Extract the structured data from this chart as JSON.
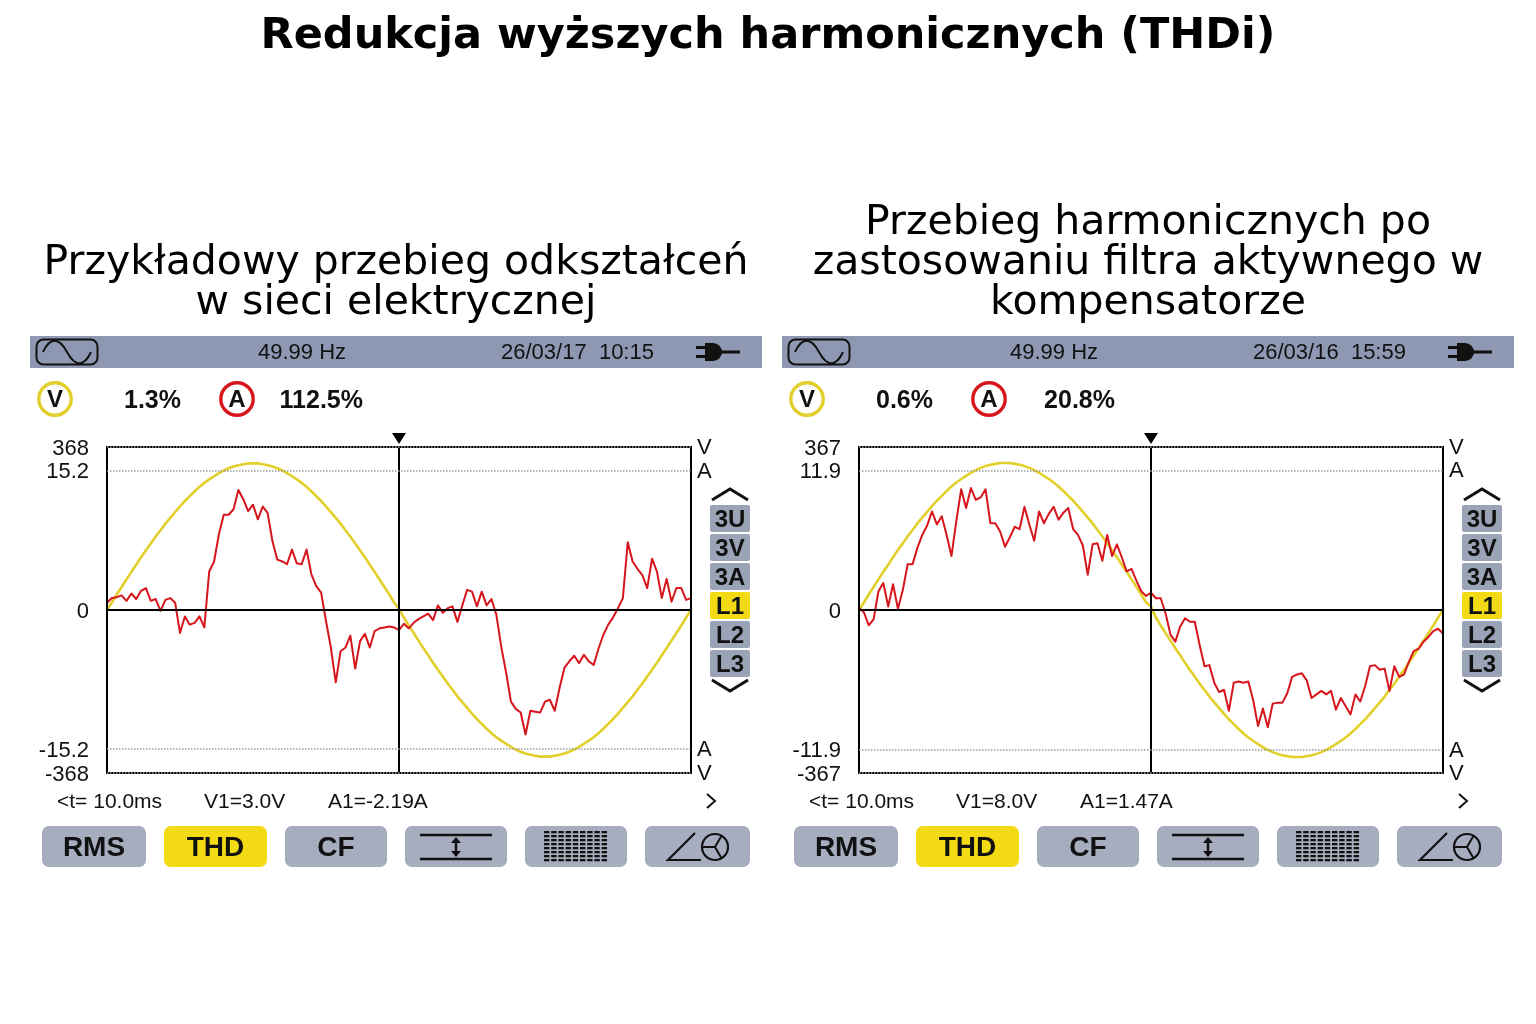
{
  "chart_data": [
    {
      "type": "line",
      "title": "Redukcja wyższych harmonicznych (THDi)",
      "subtitle": "Przykładowy przebieg odkształceń w sieci elektrycznej",
      "ylim": [
        -368,
        368
      ],
      "yticks": [
        -368,
        0,
        368
      ],
      "y2lim": [
        -17.8,
        17.8
      ],
      "y2ticks": [
        -15.2,
        15.2
      ],
      "grid": true,
      "marker": "none",
      "line_style": "solid",
      "categories": [
        null,
        null,
        null,
        null,
        null,
        null,
        null,
        null,
        null,
        null,
        null,
        null,
        null,
        null,
        null,
        null,
        null,
        null,
        null,
        null,
        null,
        null,
        null,
        null,
        null,
        null,
        null,
        null,
        null,
        null,
        null,
        null,
        null,
        null,
        null,
        null,
        null,
        null,
        null,
        null,
        null,
        null,
        null,
        null,
        null,
        null,
        null,
        null,
        null,
        null,
        null,
        null,
        null,
        null,
        null,
        null,
        null,
        null,
        null,
        null,
        null,
        null,
        null,
        null,
        null,
        null,
        null,
        null,
        null,
        null,
        null,
        null,
        null,
        null,
        null,
        null,
        null,
        null,
        null,
        null,
        null,
        null,
        null,
        null,
        null,
        null,
        null,
        null,
        null,
        null,
        null,
        null,
        null,
        null,
        null,
        null,
        null,
        null,
        null,
        null,
        null,
        null,
        null,
        null,
        null,
        null,
        null,
        null,
        null,
        null,
        null,
        null,
        null,
        null,
        null,
        null,
        null,
        null,
        null,
        null,
        null
      ],
      "annotations": [
        "49.99 Hz",
        "26/03/17  10:15",
        "V",
        "1.3%",
        "A",
        "112.5%",
        "V",
        "A",
        "A",
        "V",
        "<t= 10.0ms",
        "V1=3.0V",
        "A1=-2.19A",
        "RMS",
        "THD",
        "CF",
        "3U",
        "3V",
        "3A",
        "L1",
        "L2",
        "L3"
      ],
      "series": [
        {
          "color": "#e3cf2a",
          "values": [
            0,
            17,
            35,
            52,
            69,
            86,
            102,
            119,
            135,
            150,
            166,
            180,
            195,
            208,
            221,
            234,
            246,
            257,
            268,
            278,
            287,
            295,
            302,
            309,
            315,
            320,
            324,
            327,
            329,
            331,
            331,
            331,
            329,
            327,
            324,
            320,
            315,
            309,
            302,
            295,
            287,
            278,
            268,
            257,
            246,
            234,
            221,
            208,
            195,
            180,
            166,
            150,
            135,
            119,
            102,
            86,
            69,
            52,
            35,
            17,
            3,
            -17,
            -35,
            -52,
            -69,
            -86,
            -102,
            -119,
            -135,
            -150,
            -166,
            -180,
            -195,
            -208,
            -221,
            -234,
            -246,
            -257,
            -268,
            -278,
            -287,
            -295,
            -302,
            -309,
            -315,
            -320,
            -324,
            -327,
            -329,
            -331,
            -331,
            -331,
            -329,
            -327,
            -324,
            -320,
            -315,
            -309,
            -302,
            -295,
            -287,
            -278,
            -268,
            -257,
            -246,
            -234,
            -221,
            -208,
            -195,
            -180,
            -166,
            -150,
            -135,
            -119,
            -102,
            -86,
            -69,
            -52,
            -35,
            -17,
            0
          ]
        },
        {
          "color": "#d6161c",
          "axis": "y2",
          "values": [
            0.8,
            1.3,
            1.4,
            1.6,
            1.0,
            1.8,
            1.2,
            2.1,
            2.4,
            1.0,
            1.2,
            -0.1,
            1.1,
            1.3,
            0.8,
            -2.5,
            -0.7,
            -1.6,
            -1.4,
            -0.7,
            -1.9,
            4.2,
            5.3,
            8.3,
            10.4,
            10.4,
            11.0,
            13.1,
            12.1,
            10.8,
            11.5,
            9.9,
            11.3,
            10.6,
            7.5,
            5.5,
            5.3,
            5.0,
            6.6,
            5.1,
            5.0,
            6.6,
            3.9,
            2.6,
            1.9,
            -1.2,
            -4.1,
            -7.9,
            -4.5,
            -4.1,
            -2.8,
            -6.4,
            -3.4,
            -2.6,
            -4.1,
            -2.3,
            -2.0,
            -1.9,
            -1.8,
            -1.9,
            -2.19,
            -1.5,
            -2.0,
            -1.4,
            -1.0,
            -0.7,
            -0.4,
            -1.1,
            0.5,
            -0.3,
            0.2,
            0.4,
            -1.3,
            0.5,
            2.2,
            2.0,
            0.4,
            2.0,
            0.5,
            1.2,
            -0.5,
            -4.0,
            -6.8,
            -10.0,
            -10.8,
            -11.2,
            -13.6,
            -11.0,
            -11.1,
            -11.2,
            -10.0,
            -9.8,
            -11.0,
            -8.5,
            -6.3,
            -5.6,
            -5.0,
            -5.8,
            -4.9,
            -5.6,
            -6.0,
            -4.2,
            -2.7,
            -1.6,
            -0.8,
            0.2,
            1.3,
            7.4,
            5.3,
            4.5,
            3.8,
            2.4,
            5.6,
            4.2,
            1.3,
            3.4,
            0.9,
            2.4,
            2.4,
            1.1,
            1.3
          ]
        }
      ]
    },
    {
      "type": "line",
      "subtitle": "Przebieg harmonicznych po zastosowaniu filtra aktywnego w kompensatorze",
      "ylim": [
        -367,
        367
      ],
      "yticks": [
        -367,
        0,
        367
      ],
      "y2lim": [
        -13.9,
        13.9
      ],
      "y2ticks": [
        -11.9,
        11.9
      ],
      "grid": true,
      "marker": "none",
      "line_style": "solid",
      "categories": [
        null,
        null,
        null,
        null,
        null,
        null,
        null,
        null,
        null,
        null,
        null,
        null,
        null,
        null,
        null,
        null,
        null,
        null,
        null,
        null,
        null,
        null,
        null,
        null,
        null,
        null,
        null,
        null,
        null,
        null,
        null,
        null,
        null,
        null,
        null,
        null,
        null,
        null,
        null,
        null,
        null,
        null,
        null,
        null,
        null,
        null,
        null,
        null,
        null,
        null,
        null,
        null,
        null,
        null,
        null,
        null,
        null,
        null,
        null,
        null,
        null,
        null,
        null,
        null,
        null,
        null,
        null,
        null,
        null,
        null,
        null,
        null,
        null,
        null,
        null,
        null,
        null,
        null,
        null,
        null,
        null,
        null,
        null,
        null,
        null,
        null,
        null,
        null,
        null,
        null,
        null,
        null,
        null,
        null,
        null,
        null,
        null,
        null,
        null,
        null,
        null,
        null,
        null,
        null,
        null,
        null,
        null,
        null,
        null,
        null,
        null,
        null,
        null,
        null,
        null,
        null,
        null,
        null,
        null,
        null,
        null
      ],
      "annotations": [
        "49.99 Hz",
        "26/03/16  15:59",
        "V",
        "0.6%",
        "A",
        "20.8%",
        "V",
        "A",
        "A",
        "V",
        "<t= 10.0ms",
        "V1=8.0V",
        "A1=1.47A",
        "RMS",
        "THD",
        "CF",
        "3U",
        "3V",
        "3A",
        "L1",
        "L2",
        "L3"
      ],
      "series": [
        {
          "color": "#e3cf2a",
          "values": [
            0,
            17,
            35,
            52,
            69,
            86,
            102,
            119,
            135,
            150,
            166,
            180,
            195,
            208,
            221,
            234,
            246,
            257,
            268,
            278,
            287,
            295,
            302,
            309,
            315,
            320,
            324,
            327,
            329,
            331,
            331,
            331,
            329,
            327,
            324,
            320,
            315,
            309,
            302,
            295,
            287,
            278,
            268,
            257,
            246,
            234,
            221,
            208,
            195,
            180,
            166,
            150,
            135,
            119,
            102,
            86,
            69,
            52,
            35,
            17,
            8,
            -17,
            -35,
            -52,
            -69,
            -86,
            -102,
            -119,
            -135,
            -150,
            -166,
            -180,
            -195,
            -208,
            -221,
            -234,
            -246,
            -257,
            -268,
            -278,
            -287,
            -295,
            -302,
            -309,
            -315,
            -320,
            -324,
            -327,
            -329,
            -331,
            -331,
            -331,
            -329,
            -327,
            -324,
            -320,
            -315,
            -309,
            -302,
            -295,
            -287,
            -278,
            -268,
            -257,
            -246,
            -234,
            -221,
            -208,
            -195,
            -180,
            -166,
            -150,
            -135,
            -119,
            -102,
            -86,
            -69,
            -52,
            -35,
            -17,
            0
          ]
        },
        {
          "color": "#d6161c",
          "axis": "y2",
          "values": [
            0.2,
            -0.2,
            -1.3,
            -0.8,
            1.6,
            2.3,
            0.3,
            2.2,
            0.1,
            1.7,
            3.9,
            3.9,
            5.3,
            6.4,
            7.2,
            8.4,
            7.3,
            8.0,
            6.4,
            4.6,
            7.6,
            10.3,
            8.7,
            10.4,
            9.4,
            9.6,
            10.3,
            7.4,
            7.4,
            6.7,
            5.4,
            6.2,
            7.1,
            6.9,
            8.8,
            7.3,
            5.9,
            8.4,
            7.4,
            8.2,
            8.8,
            7.7,
            8.3,
            8.7,
            6.9,
            6.4,
            5.5,
            3.0,
            5.6,
            5.7,
            4.2,
            6.4,
            4.6,
            5.6,
            4.5,
            3.3,
            3.5,
            2.5,
            1.6,
            1.2,
            1.47,
            1.0,
            1.0,
            -0.3,
            -2.1,
            -2.7,
            -1.4,
            -0.7,
            -1.0,
            -1.0,
            -3.0,
            -4.8,
            -4.7,
            -6.2,
            -7.0,
            -6.8,
            -8.6,
            -6.2,
            -6.1,
            -6.2,
            -6.1,
            -7.7,
            -9.9,
            -8.4,
            -10.0,
            -8.0,
            -7.9,
            -7.9,
            -7.1,
            -5.7,
            -5.5,
            -5.4,
            -6.0,
            -7.5,
            -7.2,
            -6.9,
            -7.2,
            -6.9,
            -8.5,
            -7.5,
            -8.2,
            -8.9,
            -7.2,
            -7.8,
            -6.5,
            -4.8,
            -4.7,
            -5.1,
            -5.0,
            -6.9,
            -4.8,
            -5.7,
            -5.5,
            -4.4,
            -3.5,
            -3.3,
            -2.7,
            -2.3,
            -1.8,
            -1.6,
            -2.0
          ]
        }
      ]
    }
  ]
}
